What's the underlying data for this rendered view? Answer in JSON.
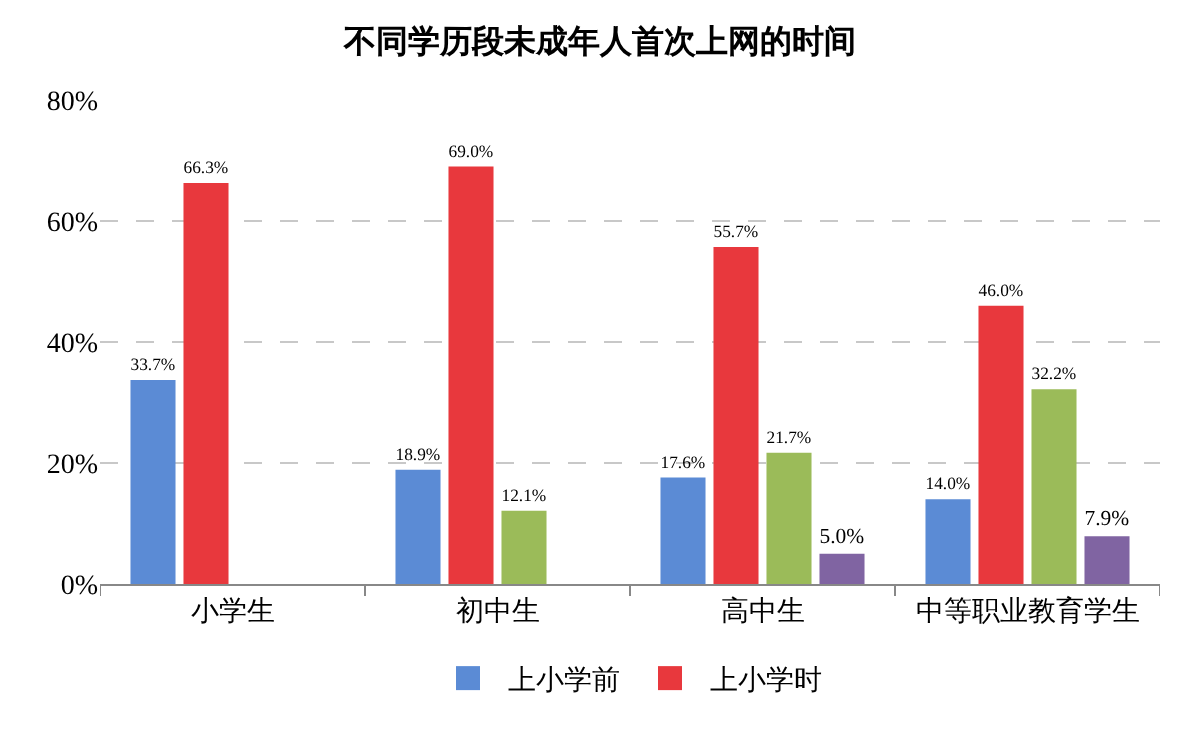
{
  "chart_data": {
    "type": "bar",
    "title": "不同学历段未成年人首次上网的时间",
    "categories": [
      "小学生",
      "初中生",
      "高中生",
      "中等职业教育学生"
    ],
    "series": [
      {
        "name": "上小学前",
        "color": "#5b8bd5",
        "values": [
          33.7,
          18.9,
          17.6,
          14.0
        ],
        "value_labels": [
          "33.7%",
          "18.9%",
          "17.6%",
          "14.0%"
        ]
      },
      {
        "name": "上小学时",
        "color": "#e8383d",
        "values": [
          66.3,
          69.0,
          55.7,
          46.0
        ],
        "value_labels": [
          "66.3%",
          "69.0%",
          "55.7%",
          "46.0%"
        ]
      },
      {
        "color": "#9bbb59",
        "values": [
          null,
          12.1,
          21.7,
          32.2
        ],
        "value_labels": [
          null,
          "12.1%",
          "21.7%",
          "32.2%"
        ]
      },
      {
        "color": "#8064a2",
        "values": [
          null,
          null,
          5.0,
          7.9
        ],
        "value_labels": [
          null,
          null,
          "5.0%",
          "7.9%"
        ]
      }
    ],
    "ylim": [
      0,
      80
    ],
    "yticks": [
      {
        "value": 0,
        "label": "0%"
      },
      {
        "value": 20,
        "label": "20%"
      },
      {
        "value": 40,
        "label": "40%"
      },
      {
        "value": 60,
        "label": "60%"
      },
      {
        "value": 80,
        "label": "80%"
      }
    ],
    "grid": "y",
    "legend": "bottom"
  }
}
